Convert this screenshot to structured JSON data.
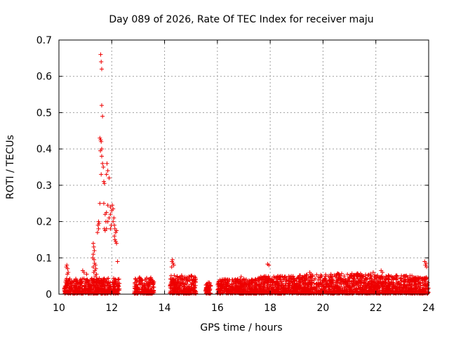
{
  "chart_data": {
    "type": "scatter",
    "title": "Day 089 of 2026, Rate Of TEC Index for receiver maju",
    "xlabel": "GPS time / hours",
    "ylabel": "ROTI / TECUs",
    "xlim": [
      10,
      24
    ],
    "ylim": [
      0,
      0.7
    ],
    "xticks": [
      10,
      12,
      14,
      16,
      18,
      20,
      22,
      24
    ],
    "yticks": [
      0,
      0.1,
      0.2,
      0.3,
      0.4,
      0.5,
      0.6,
      0.7
    ],
    "xtick_labels": [
      "10",
      "12",
      "14",
      "16",
      "18",
      "20",
      "22",
      "24"
    ],
    "ytick_labels": [
      "0",
      "0.1",
      "0.2",
      "0.3",
      "0.4",
      "0.5",
      "0.6",
      "0.7"
    ],
    "grid": true,
    "marker": "+",
    "color": "#ee0000",
    "series": [
      {
        "name": "ROTI",
        "description": "dense band of values below ~0.05 TECU for 10.2-24 h, data gaps near 12.3-12.8, 13.6-14.2, 15.2-15.6 and 15.8-16.0 h",
        "points": [
          [
            11.58,
            0.66
          ],
          [
            11.6,
            0.64
          ],
          [
            11.62,
            0.62
          ],
          [
            11.62,
            0.52
          ],
          [
            11.65,
            0.49
          ],
          [
            11.55,
            0.43
          ],
          [
            11.58,
            0.425
          ],
          [
            11.6,
            0.42
          ],
          [
            11.62,
            0.4
          ],
          [
            11.57,
            0.395
          ],
          [
            11.62,
            0.38
          ],
          [
            11.65,
            0.36
          ],
          [
            11.68,
            0.35
          ],
          [
            11.7,
            0.31
          ],
          [
            11.72,
            0.305
          ],
          [
            11.82,
            0.36
          ],
          [
            11.85,
            0.34
          ],
          [
            11.8,
            0.33
          ],
          [
            11.9,
            0.32
          ],
          [
            11.6,
            0.33
          ],
          [
            11.55,
            0.25
          ],
          [
            11.7,
            0.25
          ],
          [
            11.85,
            0.245
          ],
          [
            11.95,
            0.24
          ],
          [
            12.02,
            0.245
          ],
          [
            12.05,
            0.235
          ],
          [
            11.75,
            0.22
          ],
          [
            11.8,
            0.225
          ],
          [
            11.9,
            0.21
          ],
          [
            11.95,
            0.22
          ],
          [
            12.0,
            0.23
          ],
          [
            12.08,
            0.21
          ],
          [
            11.78,
            0.2
          ],
          [
            11.85,
            0.2
          ],
          [
            11.98,
            0.19
          ],
          [
            12.05,
            0.2
          ],
          [
            12.1,
            0.19
          ],
          [
            11.5,
            0.2
          ],
          [
            11.52,
            0.195
          ],
          [
            11.48,
            0.19
          ],
          [
            11.5,
            0.18
          ],
          [
            11.72,
            0.18
          ],
          [
            11.75,
            0.175
          ],
          [
            11.8,
            0.18
          ],
          [
            11.95,
            0.18
          ],
          [
            12.12,
            0.18
          ],
          [
            12.15,
            0.17
          ],
          [
            12.18,
            0.175
          ],
          [
            11.46,
            0.17
          ],
          [
            12.1,
            0.16
          ],
          [
            12.12,
            0.15
          ],
          [
            12.15,
            0.145
          ],
          [
            12.18,
            0.14
          ],
          [
            12.22,
            0.09
          ],
          [
            11.3,
            0.14
          ],
          [
            11.32,
            0.13
          ],
          [
            11.34,
            0.12
          ],
          [
            11.3,
            0.11
          ],
          [
            11.28,
            0.1
          ],
          [
            11.33,
            0.095
          ],
          [
            11.35,
            0.085
          ],
          [
            11.38,
            0.08
          ],
          [
            11.3,
            0.075
          ],
          [
            11.4,
            0.07
          ],
          [
            11.36,
            0.065
          ],
          [
            11.32,
            0.06
          ],
          [
            11.42,
            0.055
          ],
          [
            11.38,
            0.05
          ],
          [
            10.28,
            0.075
          ],
          [
            10.3,
            0.08
          ],
          [
            10.33,
            0.07
          ],
          [
            10.35,
            0.06
          ],
          [
            10.32,
            0.055
          ],
          [
            10.9,
            0.065
          ],
          [
            10.95,
            0.06
          ],
          [
            11.05,
            0.055
          ],
          [
            14.28,
            0.09
          ],
          [
            14.3,
            0.095
          ],
          [
            14.32,
            0.085
          ],
          [
            14.35,
            0.08
          ],
          [
            14.27,
            0.075
          ],
          [
            17.9,
            0.083
          ],
          [
            17.95,
            0.08
          ],
          [
            23.85,
            0.09
          ],
          [
            23.9,
            0.085
          ],
          [
            23.88,
            0.08
          ],
          [
            23.92,
            0.075
          ],
          [
            18.4,
            0.05
          ],
          [
            19.5,
            0.06
          ],
          [
            19.55,
            0.055
          ],
          [
            20.3,
            0.055
          ],
          [
            20.8,
            0.05
          ],
          [
            21.3,
            0.055
          ],
          [
            21.9,
            0.06
          ],
          [
            22.2,
            0.065
          ],
          [
            22.25,
            0.06
          ],
          [
            22.8,
            0.045
          ],
          [
            23.1,
            0.05
          ],
          [
            15.0,
            0.05
          ],
          [
            16.9,
            0.048
          ]
        ],
        "band_segments": [
          [
            10.2,
            12.3,
            0.042
          ],
          [
            12.85,
            13.6,
            0.045
          ],
          [
            14.2,
            15.2,
            0.05
          ],
          [
            15.55,
            15.75,
            0.03
          ],
          [
            16.0,
            17.5,
            0.04
          ],
          [
            17.5,
            19.0,
            0.048
          ],
          [
            19.0,
            20.5,
            0.052
          ],
          [
            20.5,
            22.0,
            0.055
          ],
          [
            22.0,
            23.4,
            0.05
          ],
          [
            23.4,
            24.0,
            0.045
          ]
        ]
      }
    ]
  }
}
